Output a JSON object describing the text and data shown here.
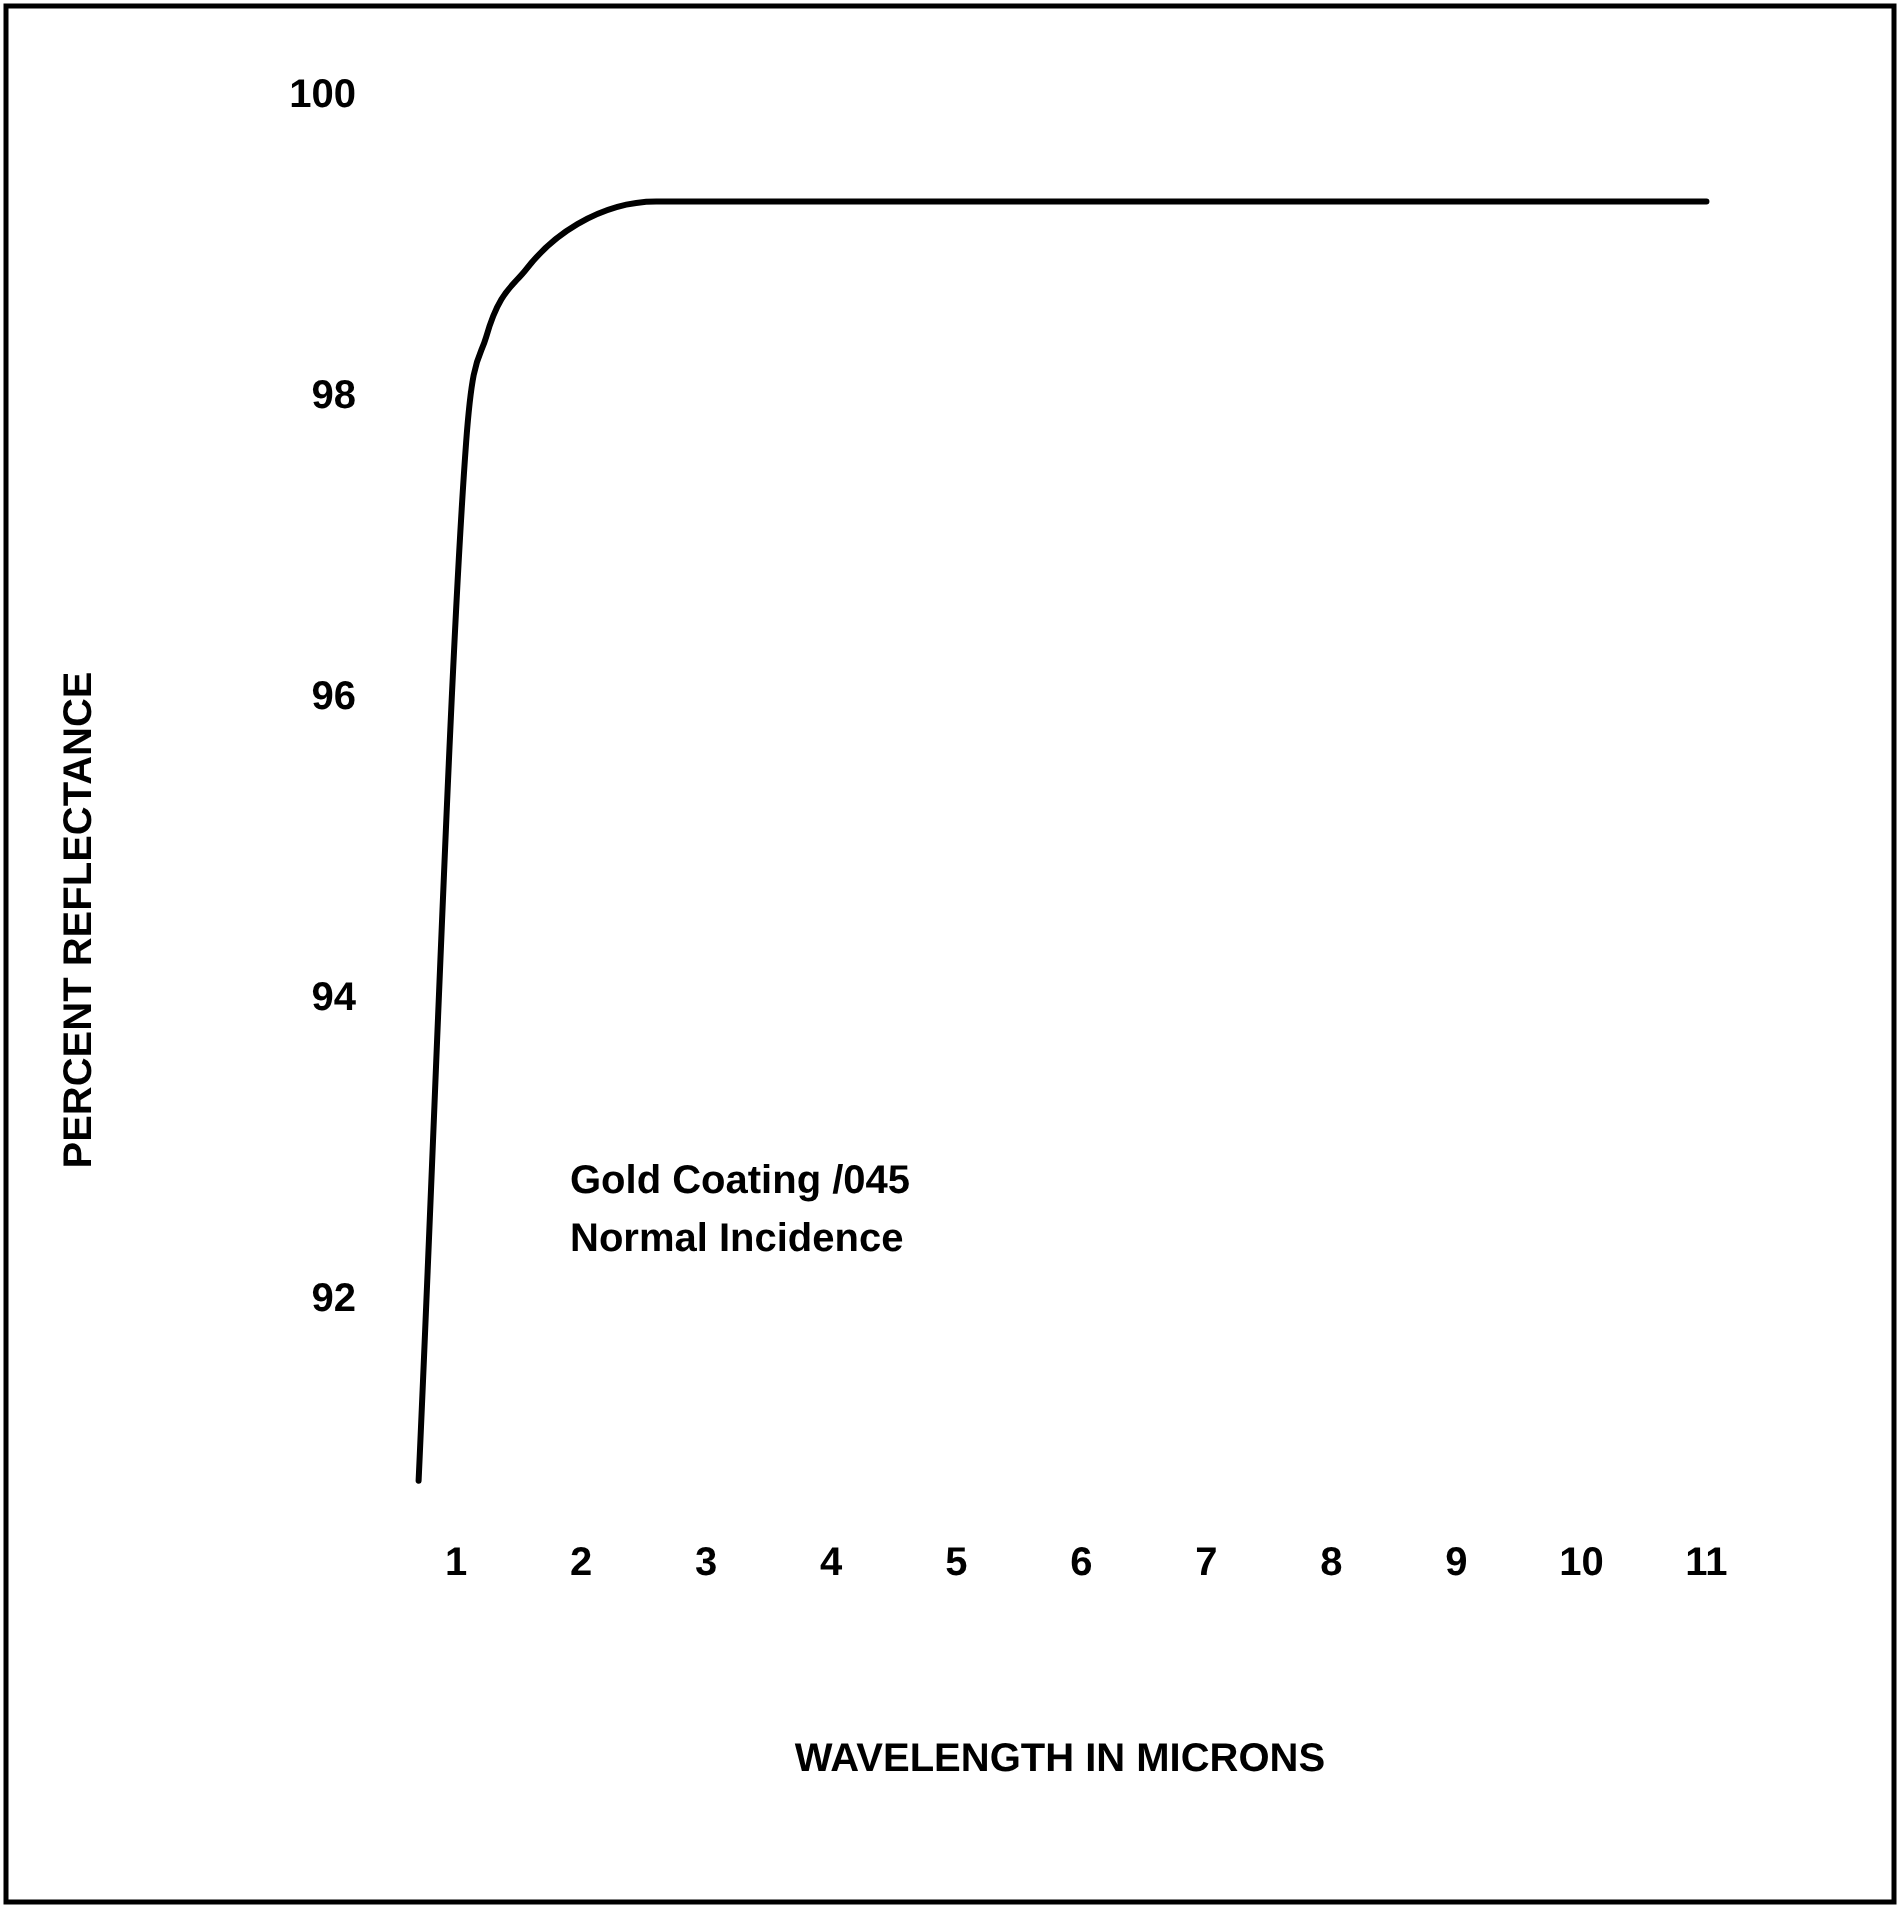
{
  "chart_data": {
    "type": "line",
    "xlabel": "WAVELENGTH IN MICRONS",
    "ylabel": "PERCENT REFLECTANCE",
    "annotations": [
      "Gold Coating /045",
      "Normal Incidence"
    ],
    "x": [
      0.7,
      1.08,
      1.24,
      1.56,
      1.97,
      2.6,
      3.0,
      11
    ],
    "series": [
      {
        "color": "#000000",
        "values": [
          90.8,
          97.7,
          98.4,
          98.85,
          99.15,
          99.3,
          99.3,
          99.3
        ]
      }
    ],
    "xlim": [
      -2.6,
      12.5
    ],
    "xticks": [
      1,
      2,
      3,
      4,
      5,
      6,
      7,
      8,
      9,
      10,
      11
    ],
    "ylim": [
      88,
      100.6
    ],
    "yticks": [
      92,
      94,
      96,
      98,
      100
    ],
    "grid": false,
    "legend": false,
    "marker": "none",
    "line_style": "solid"
  }
}
